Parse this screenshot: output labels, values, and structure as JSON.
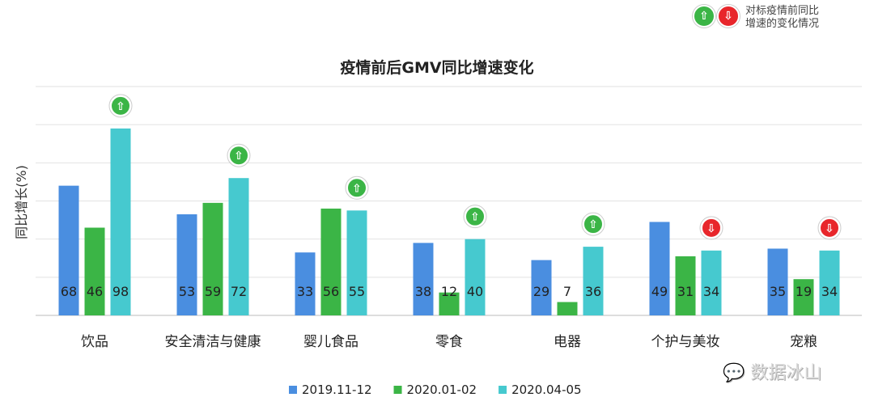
{
  "legend_note": {
    "line1": "对标疫情前同比",
    "line2": "增速的变化情况"
  },
  "watermark": "数据冰山",
  "chart_data": {
    "type": "bar",
    "title": "疫情前后GMV同比增速变化",
    "xlabel": "",
    "ylabel": "同比增长(%)",
    "ylim": [
      0,
      120
    ],
    "grid": true,
    "categories": [
      "饮品",
      "安全清洁与健康",
      "婴儿食品",
      "零食",
      "电器",
      "个护与美妆",
      "宠粮"
    ],
    "series": [
      {
        "name": "2019.11-12",
        "color": "#4a8ee0",
        "values": [
          68,
          53,
          33,
          38,
          29,
          49,
          35
        ]
      },
      {
        "name": "2020.01-02",
        "color": "#3bb546",
        "values": [
          46,
          59,
          56,
          12,
          7,
          31,
          19
        ]
      },
      {
        "name": "2020.04-05",
        "color": "#46c9cf",
        "values": [
          98,
          72,
          55,
          40,
          36,
          34,
          34
        ]
      }
    ],
    "trend_vs_pre_epidemic": [
      "up",
      "up",
      "up",
      "up",
      "up",
      "down",
      "down"
    ],
    "trend_colors": {
      "up": "#3bb546",
      "down": "#e8262b"
    },
    "legend_position": "bottom"
  }
}
